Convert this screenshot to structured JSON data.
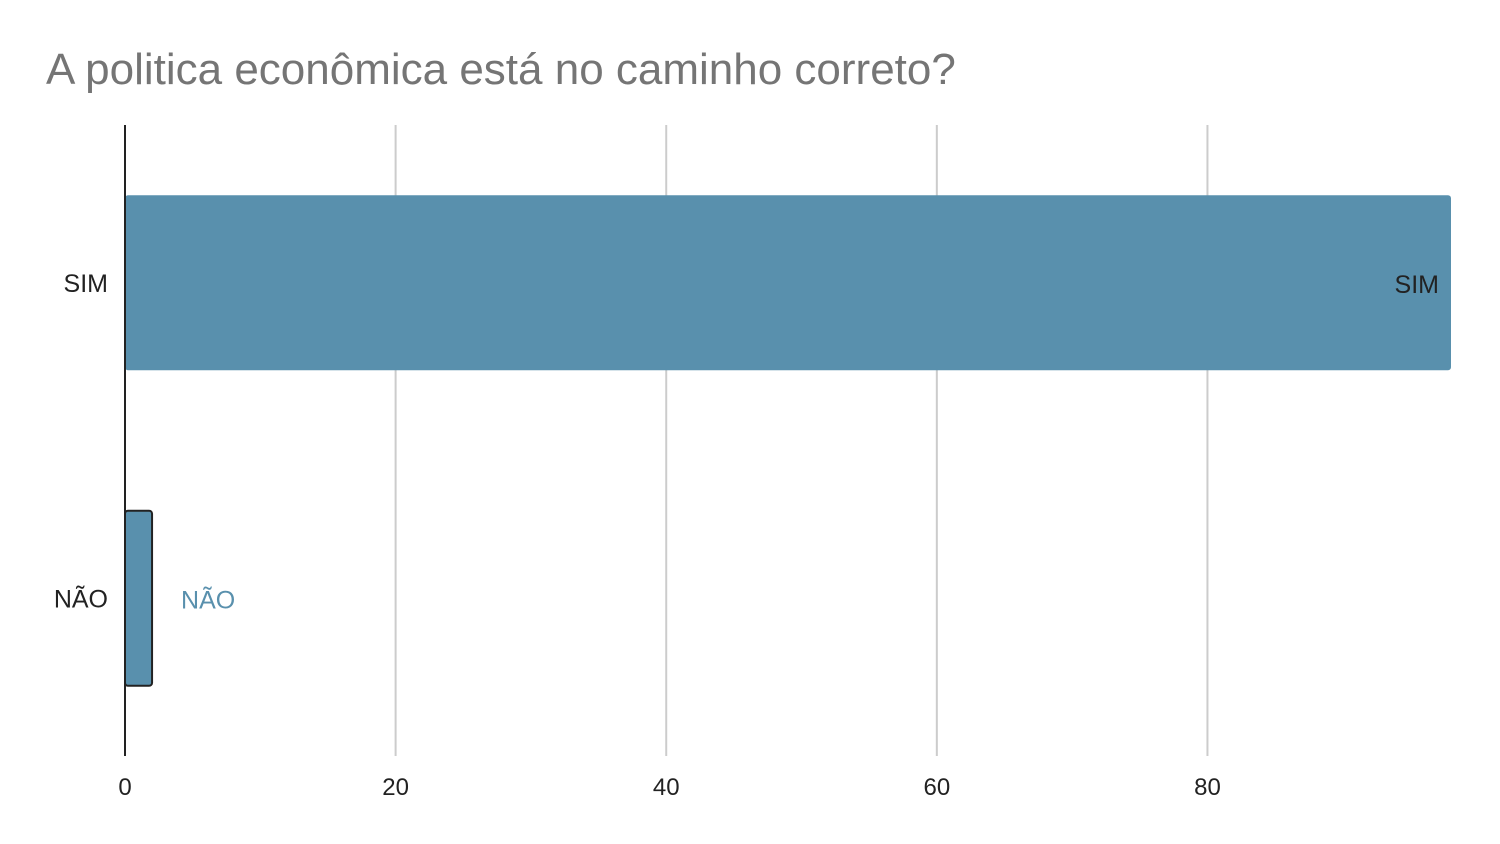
{
  "chart_data": {
    "type": "bar",
    "orientation": "horizontal",
    "title": "A politica econômica está no caminho correto?",
    "categories": [
      "SIM",
      "NÃO"
    ],
    "values": [
      98,
      2
    ],
    "data_labels": [
      "SIM",
      "NÃO"
    ],
    "x_ticks": [
      0,
      20,
      40,
      60,
      80
    ],
    "xlim": [
      0,
      98
    ],
    "grid": true,
    "legend": "none",
    "colors": {
      "bar": "#5990ad",
      "title": "#757575",
      "grid": "#cccccc",
      "axis": "#222222",
      "text": "#222222",
      "label_inside": "#222222",
      "label_outside": "#5990ad"
    }
  }
}
